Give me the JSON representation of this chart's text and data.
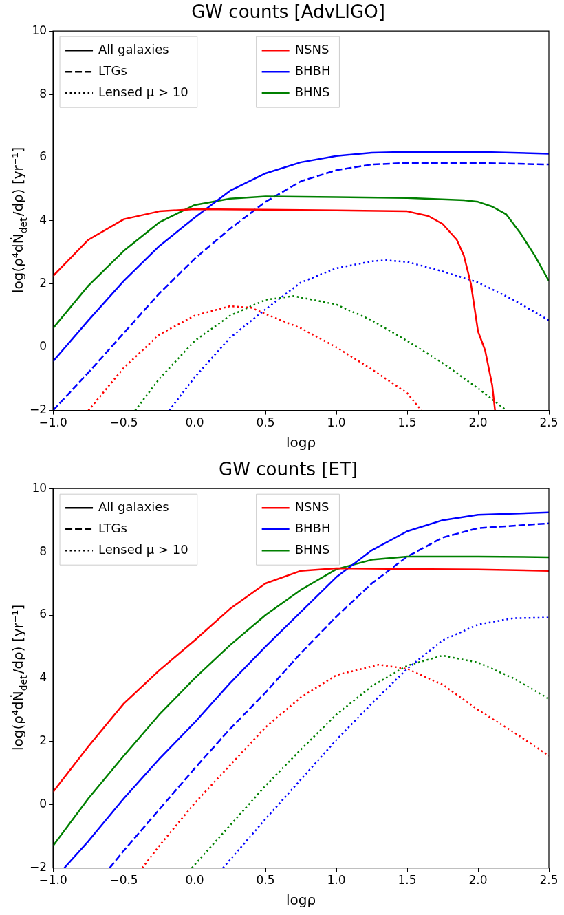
{
  "chart_data": [
    {
      "type": "line",
      "title": "GW counts [AdvLIGO]",
      "xlabel": "logρ",
      "ylabel": "log(ρ⁴dṄ$_{det}$/dρ) [yr⁻¹]",
      "xlim": [
        -1,
        2.5
      ],
      "ylim": [
        -2,
        10
      ],
      "xticks": [
        {
          "value": -1,
          "label": "−1.0"
        },
        {
          "value": -0.5,
          "label": "−0.5"
        },
        {
          "value": 0,
          "label": "0.0"
        },
        {
          "value": 0.5,
          "label": "0.5"
        },
        {
          "value": 1,
          "label": "1.0"
        },
        {
          "value": 1.5,
          "label": "1.5"
        },
        {
          "value": 2,
          "label": "2.0"
        },
        {
          "value": 2.5,
          "label": "2.5"
        }
      ],
      "yticks": [
        {
          "value": -2,
          "label": "−2"
        },
        0,
        2,
        4,
        6,
        8,
        10
      ],
      "grid": false,
      "legend": "top left",
      "marker": "none",
      "series": [
        {
          "name": "All galaxies",
          "color": "#000000",
          "line_style": "solid"
        },
        {
          "name": "LTGs",
          "color": "#000000",
          "line_style": "dashed"
        },
        {
          "name": "Lensed μ > 10",
          "color": "#000000",
          "line_style": "dotted"
        },
        {
          "name": "NSNS",
          "color": "#ff0000",
          "line_style": "solid",
          "x": [
            -1,
            -0.75,
            -0.5,
            -0.25,
            0,
            0.5,
            1,
            1.5,
            1.65,
            1.75,
            1.85,
            1.9,
            1.95,
            2,
            2.05,
            2.1,
            2.12
          ],
          "values": [
            2.25,
            3.4,
            4.05,
            4.3,
            4.37,
            4.35,
            4.33,
            4.3,
            4.15,
            3.9,
            3.4,
            2.9,
            2.0,
            0.5,
            -0.1,
            -1.2,
            -2
          ]
        },
        {
          "name": "BHBH",
          "color": "#0000ff",
          "line_style": "solid",
          "x": [
            -1,
            -0.75,
            -0.5,
            -0.25,
            0,
            0.25,
            0.5,
            0.75,
            1,
            1.25,
            1.5,
            2,
            2.5
          ],
          "values": [
            -0.45,
            0.85,
            2.1,
            3.2,
            4.1,
            4.95,
            5.5,
            5.85,
            6.05,
            6.15,
            6.18,
            6.18,
            6.12
          ]
        },
        {
          "name": "BHNS",
          "color": "#008000",
          "line_style": "solid",
          "x": [
            -1,
            -0.75,
            -0.5,
            -0.25,
            0,
            0.25,
            0.5,
            1,
            1.5,
            1.9,
            2,
            2.1,
            2.2,
            2.3,
            2.4,
            2.5
          ],
          "values": [
            0.6,
            1.95,
            3.05,
            3.95,
            4.5,
            4.7,
            4.77,
            4.75,
            4.72,
            4.65,
            4.6,
            4.45,
            4.2,
            3.6,
            2.9,
            2.1
          ]
        },
        {
          "color": "#0000ff",
          "line_style": "dashed",
          "x": [
            -1,
            -0.75,
            -0.5,
            -0.25,
            0,
            0.25,
            0.5,
            0.75,
            1,
            1.25,
            1.5,
            2,
            2.5
          ],
          "values": [
            -2,
            -0.8,
            0.45,
            1.7,
            2.8,
            3.75,
            4.6,
            5.25,
            5.6,
            5.78,
            5.83,
            5.83,
            5.78
          ]
        },
        {
          "color": "#ff0000",
          "line_style": "dotted",
          "x": [
            -0.75,
            -0.5,
            -0.25,
            0,
            0.25,
            0.4,
            0.5,
            0.75,
            1,
            1.25,
            1.5,
            1.6
          ],
          "values": [
            -2,
            -0.65,
            0.4,
            1.0,
            1.3,
            1.25,
            1.05,
            0.6,
            0.0,
            -0.7,
            -1.45,
            -2
          ]
        },
        {
          "color": "#008000",
          "line_style": "dotted",
          "x": [
            -0.42,
            -0.25,
            0,
            0.25,
            0.5,
            0.7,
            1,
            1.25,
            1.5,
            1.75,
            2,
            2.2
          ],
          "values": [
            -2,
            -1.0,
            0.2,
            1.0,
            1.5,
            1.62,
            1.35,
            0.85,
            0.2,
            -0.5,
            -1.3,
            -2
          ]
        },
        {
          "color": "#0000ff",
          "line_style": "dotted",
          "x": [
            -0.18,
            0,
            0.25,
            0.5,
            0.75,
            1,
            1.25,
            1.35,
            1.5,
            1.75,
            2,
            2.25,
            2.5
          ],
          "values": [
            -2,
            -0.95,
            0.3,
            1.2,
            2.05,
            2.5,
            2.72,
            2.75,
            2.7,
            2.4,
            2.05,
            1.5,
            0.85
          ]
        }
      ]
    },
    {
      "type": "line",
      "title": "GW counts [ET]",
      "xlabel": "logρ",
      "ylabel": "log(ρ⁴dṄ$_{det}$/dρ) [yr⁻¹]",
      "xlim": [
        -1,
        2.5
      ],
      "ylim": [
        -2,
        10
      ],
      "xticks": [
        {
          "value": -1,
          "label": "−1.0"
        },
        {
          "value": -0.5,
          "label": "−0.5"
        },
        {
          "value": 0,
          "label": "0.0"
        },
        {
          "value": 0.5,
          "label": "0.5"
        },
        {
          "value": 1,
          "label": "1.0"
        },
        {
          "value": 1.5,
          "label": "1.5"
        },
        {
          "value": 2,
          "label": "2.0"
        },
        {
          "value": 2.5,
          "label": "2.5"
        }
      ],
      "yticks": [
        {
          "value": -2,
          "label": "−2"
        },
        0,
        2,
        4,
        6,
        8,
        10
      ],
      "grid": false,
      "legend": "top left",
      "marker": "none",
      "series": [
        {
          "name": "All galaxies",
          "color": "#000000",
          "line_style": "solid"
        },
        {
          "name": "LTGs",
          "color": "#000000",
          "line_style": "dashed"
        },
        {
          "name": "Lensed μ > 10",
          "color": "#000000",
          "line_style": "dotted"
        },
        {
          "name": "NSNS",
          "color": "#ff0000",
          "line_style": "solid",
          "x": [
            -1,
            -0.75,
            -0.5,
            -0.25,
            0,
            0.25,
            0.5,
            0.75,
            1,
            1.5,
            2,
            2.5
          ],
          "values": [
            0.4,
            1.85,
            3.2,
            4.25,
            5.2,
            6.2,
            7.0,
            7.4,
            7.48,
            7.46,
            7.44,
            7.4
          ]
        },
        {
          "name": "BHBH",
          "color": "#0000ff",
          "line_style": "solid",
          "x": [
            -0.92,
            -0.75,
            -0.5,
            -0.25,
            0,
            0.25,
            0.5,
            0.75,
            1,
            1.25,
            1.5,
            1.75,
            2,
            2.5
          ],
          "values": [
            -2,
            -1.15,
            0.2,
            1.45,
            2.6,
            3.85,
            5.0,
            6.1,
            7.2,
            8.05,
            8.65,
            9.0,
            9.17,
            9.25
          ]
        },
        {
          "name": "BHNS",
          "color": "#008000",
          "line_style": "solid",
          "x": [
            -1,
            -0.75,
            -0.5,
            -0.25,
            0,
            0.25,
            0.5,
            0.75,
            1,
            1.25,
            1.5,
            2,
            2.5
          ],
          "values": [
            -1.3,
            0.2,
            1.55,
            2.85,
            4.0,
            5.05,
            6.0,
            6.8,
            7.45,
            7.75,
            7.85,
            7.85,
            7.83
          ]
        },
        {
          "color": "#0000ff",
          "line_style": "dashed",
          "x": [
            -0.6,
            -0.5,
            -0.25,
            0,
            0.25,
            0.5,
            0.75,
            1,
            1.25,
            1.5,
            1.75,
            2,
            2.5
          ],
          "values": [
            -2,
            -1.45,
            -0.15,
            1.15,
            2.4,
            3.55,
            4.8,
            5.95,
            7.0,
            7.85,
            8.45,
            8.75,
            8.9
          ]
        },
        {
          "color": "#ff0000",
          "line_style": "dotted",
          "x": [
            -0.37,
            -0.25,
            0,
            0.25,
            0.5,
            0.75,
            1,
            1.3,
            1.5,
            1.75,
            2,
            2.25,
            2.5
          ],
          "values": [
            -2,
            -1.3,
            0.05,
            1.25,
            2.45,
            3.4,
            4.1,
            4.43,
            4.3,
            3.8,
            3.0,
            2.3,
            1.55
          ]
        },
        {
          "color": "#008000",
          "line_style": "dotted",
          "x": [
            -0.02,
            0.25,
            0.5,
            0.75,
            1,
            1.25,
            1.5,
            1.75,
            2,
            2.25,
            2.5
          ],
          "values": [
            -2,
            -0.65,
            0.6,
            1.75,
            2.85,
            3.75,
            4.4,
            4.72,
            4.5,
            4.0,
            3.35
          ]
        },
        {
          "color": "#0000ff",
          "line_style": "dotted",
          "x": [
            0.2,
            0.5,
            0.75,
            1,
            1.25,
            1.5,
            1.75,
            2,
            2.25,
            2.5
          ],
          "values": [
            -2,
            -0.45,
            0.8,
            2.05,
            3.2,
            4.3,
            5.2,
            5.7,
            5.9,
            5.92
          ]
        }
      ]
    }
  ]
}
